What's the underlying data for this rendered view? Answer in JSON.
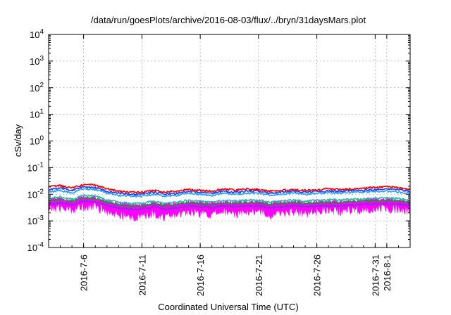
{
  "chart_data": {
    "type": "line",
    "title": "/data/run/goesPlots/archive/2016-08-03/flux/../bryn/31daysMars.plot",
    "xlabel": "Coordinated Universal Time (UTC)",
    "ylabel": "cSv/day",
    "yscale": "log",
    "ylim": [
      0.0001,
      10000
    ],
    "xlim": [
      "2016-07-03",
      "2016-08-03"
    ],
    "grid": true,
    "ytick_labels": [
      {
        "base": "10",
        "exp": "-4",
        "value": 0.0001
      },
      {
        "base": "10",
        "exp": "-3",
        "value": 0.001
      },
      {
        "base": "10",
        "exp": "-2",
        "value": 0.01
      },
      {
        "base": "10",
        "exp": "-1",
        "value": 0.1
      },
      {
        "base": "10",
        "exp": "0",
        "value": 1
      },
      {
        "base": "10",
        "exp": "1",
        "value": 10
      },
      {
        "base": "10",
        "exp": "2",
        "value": 100
      },
      {
        "base": "10",
        "exp": "3",
        "value": 1000
      },
      {
        "base": "10",
        "exp": "4",
        "value": 10000
      }
    ],
    "xtick_labels": [
      {
        "label": "2016-7-6",
        "date": "2016-07-06"
      },
      {
        "label": "2016-7-11",
        "date": "2016-07-11"
      },
      {
        "label": "2016-7-16",
        "date": "2016-07-16"
      },
      {
        "label": "2016-7-21",
        "date": "2016-07-21"
      },
      {
        "label": "2016-7-26",
        "date": "2016-07-26"
      },
      {
        "label": "2016-7-31",
        "date": "2016-07-31"
      },
      {
        "label": "2016-8-1",
        "date": "2016-08-01"
      }
    ],
    "x": [
      "2016-07-03",
      "2016-07-04",
      "2016-07-05",
      "2016-07-06",
      "2016-07-07",
      "2016-07-08",
      "2016-07-09",
      "2016-07-10",
      "2016-07-11",
      "2016-07-12",
      "2016-07-13",
      "2016-07-14",
      "2016-07-15",
      "2016-07-16",
      "2016-07-17",
      "2016-07-18",
      "2016-07-19",
      "2016-07-20",
      "2016-07-21",
      "2016-07-22",
      "2016-07-23",
      "2016-07-24",
      "2016-07-25",
      "2016-07-26",
      "2016-07-27",
      "2016-07-28",
      "2016-07-29",
      "2016-07-30",
      "2016-07-31",
      "2016-08-01",
      "2016-08-02",
      "2016-08-03"
    ],
    "series": [
      {
        "color": "#ff0000",
        "values": [
          0.019,
          0.021,
          0.017,
          0.023,
          0.022,
          0.016,
          0.013,
          0.012,
          0.012,
          0.014,
          0.012,
          0.013,
          0.015,
          0.014,
          0.013,
          0.016,
          0.014,
          0.016,
          0.015,
          0.013,
          0.014,
          0.015,
          0.014,
          0.015,
          0.016,
          0.015,
          0.016,
          0.017,
          0.018,
          0.019,
          0.018,
          0.015
        ]
      },
      {
        "color": "#1f3fff",
        "values": [
          0.015,
          0.017,
          0.014,
          0.019,
          0.018,
          0.013,
          0.011,
          0.01,
          0.01,
          0.012,
          0.01,
          0.011,
          0.013,
          0.012,
          0.011,
          0.013,
          0.012,
          0.013,
          0.013,
          0.011,
          0.012,
          0.013,
          0.012,
          0.013,
          0.013,
          0.013,
          0.014,
          0.014,
          0.015,
          0.016,
          0.015,
          0.013
        ]
      },
      {
        "color": "#2aa1ff",
        "values": [
          0.012,
          0.014,
          0.011,
          0.016,
          0.015,
          0.011,
          0.009,
          0.0085,
          0.0085,
          0.01,
          0.0085,
          0.009,
          0.011,
          0.01,
          0.009,
          0.011,
          0.01,
          0.011,
          0.011,
          0.009,
          0.01,
          0.011,
          0.01,
          0.011,
          0.011,
          0.011,
          0.012,
          0.012,
          0.013,
          0.013,
          0.012,
          0.011
        ]
      },
      {
        "color": "#20c0a8",
        "values": [
          0.007,
          0.008,
          0.0065,
          0.009,
          0.0085,
          0.006,
          0.005,
          0.0045,
          0.0045,
          0.0055,
          0.0045,
          0.005,
          0.006,
          0.0055,
          0.005,
          0.006,
          0.0055,
          0.006,
          0.006,
          0.005,
          0.0055,
          0.006,
          0.0055,
          0.006,
          0.0062,
          0.006,
          0.0065,
          0.0068,
          0.007,
          0.0072,
          0.007,
          0.006
        ]
      },
      {
        "color": "#2a8a3a",
        "values": [
          0.0055,
          0.0063,
          0.0052,
          0.0072,
          0.0068,
          0.0048,
          0.004,
          0.0036,
          0.0036,
          0.0044,
          0.0036,
          0.004,
          0.0048,
          0.0044,
          0.004,
          0.0048,
          0.0044,
          0.0048,
          0.0048,
          0.004,
          0.0044,
          0.0048,
          0.0044,
          0.0048,
          0.005,
          0.0048,
          0.0052,
          0.0055,
          0.0056,
          0.0058,
          0.0056,
          0.0048
        ]
      },
      {
        "color": "#8a2be2",
        "values": [
          0.0042,
          0.0048,
          0.004,
          0.0055,
          0.0052,
          0.0037,
          0.0031,
          0.0028,
          0.0028,
          0.0034,
          0.0028,
          0.0031,
          0.0037,
          0.0034,
          0.0031,
          0.0037,
          0.0034,
          0.0037,
          0.0037,
          0.0031,
          0.0034,
          0.0037,
          0.0034,
          0.0037,
          0.0038,
          0.0037,
          0.004,
          0.0042,
          0.0043,
          0.0045,
          0.0043,
          0.0037
        ]
      }
    ],
    "band": {
      "color": "#ff00ff",
      "upper": [
        0.0062,
        0.0072,
        0.0058,
        0.0082,
        0.0078,
        0.0055,
        0.0046,
        0.0042,
        0.0042,
        0.005,
        0.0042,
        0.0046,
        0.0055,
        0.005,
        0.0046,
        0.0055,
        0.005,
        0.0055,
        0.0055,
        0.0046,
        0.005,
        0.0055,
        0.005,
        0.0055,
        0.0058,
        0.0055,
        0.006,
        0.0063,
        0.0065,
        0.0068,
        0.0065,
        0.0055
      ],
      "lower": [
        0.0026,
        0.003,
        0.0024,
        0.0034,
        0.0032,
        0.0022,
        0.0016,
        0.0013,
        0.0013,
        0.0018,
        0.0013,
        0.0016,
        0.0022,
        0.0018,
        0.0016,
        0.0022,
        0.0018,
        0.0022,
        0.0022,
        0.0016,
        0.0018,
        0.0022,
        0.0018,
        0.0022,
        0.0024,
        0.0022,
        0.0025,
        0.0026,
        0.0027,
        0.0028,
        0.0027,
        0.0022
      ]
    }
  }
}
